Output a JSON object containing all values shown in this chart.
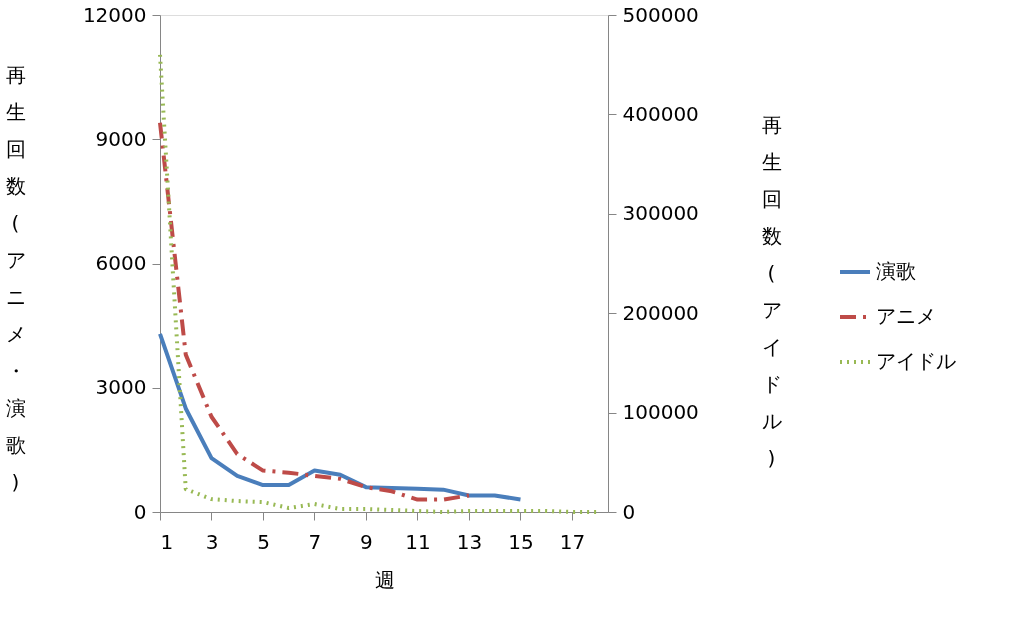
{
  "chart_data": {
    "type": "line",
    "xlabel": "週",
    "ylabel": "再生回数(アニメ・演歌)",
    "y2label": "再生回数(アイドル)",
    "xlim": [
      1,
      18.4
    ],
    "xticks": [
      1,
      3,
      5,
      7,
      9,
      11,
      13,
      15,
      17
    ],
    "ylim": [
      0,
      12000
    ],
    "yticks": [
      0,
      3000,
      6000,
      9000,
      12000
    ],
    "y2lim": [
      0,
      500000
    ],
    "y2ticks": [
      0,
      100000,
      200000,
      300000,
      400000,
      500000
    ],
    "grid": false,
    "legend": "right",
    "marker": "none",
    "series": [
      {
        "name": "演歌",
        "color": "#4a7ebb",
        "line_style": "solid",
        "axis": "y",
        "x": [
          1,
          2,
          3,
          4,
          5,
          6,
          7,
          8,
          9,
          10,
          11,
          12,
          13,
          14,
          15
        ],
        "values": [
          4300,
          2500,
          1300,
          870,
          650,
          650,
          1000,
          900,
          600,
          580,
          560,
          540,
          400,
          400,
          300
        ]
      },
      {
        "name": "アニメ",
        "color": "#be4b48",
        "line_style": "dashed",
        "axis": "y",
        "x": [
          1,
          2,
          3,
          4,
          5,
          6,
          7,
          8,
          9,
          10,
          11,
          12,
          13
        ],
        "values": [
          9400,
          3800,
          2300,
          1400,
          1000,
          950,
          870,
          800,
          600,
          500,
          300,
          300,
          400
        ]
      },
      {
        "name": "アイドル",
        "color": "#98b954",
        "line_style": "dotted",
        "axis": "y2",
        "x": [
          1,
          2,
          3,
          4,
          5,
          6,
          7,
          8,
          9,
          10,
          11,
          12,
          13,
          14,
          15,
          16,
          17,
          18
        ],
        "values": [
          460000,
          23000,
          13000,
          11000,
          10000,
          4000,
          8000,
          3000,
          3000,
          2000,
          1000,
          0,
          1000,
          1000,
          1000,
          1000,
          0,
          0
        ]
      }
    ]
  }
}
